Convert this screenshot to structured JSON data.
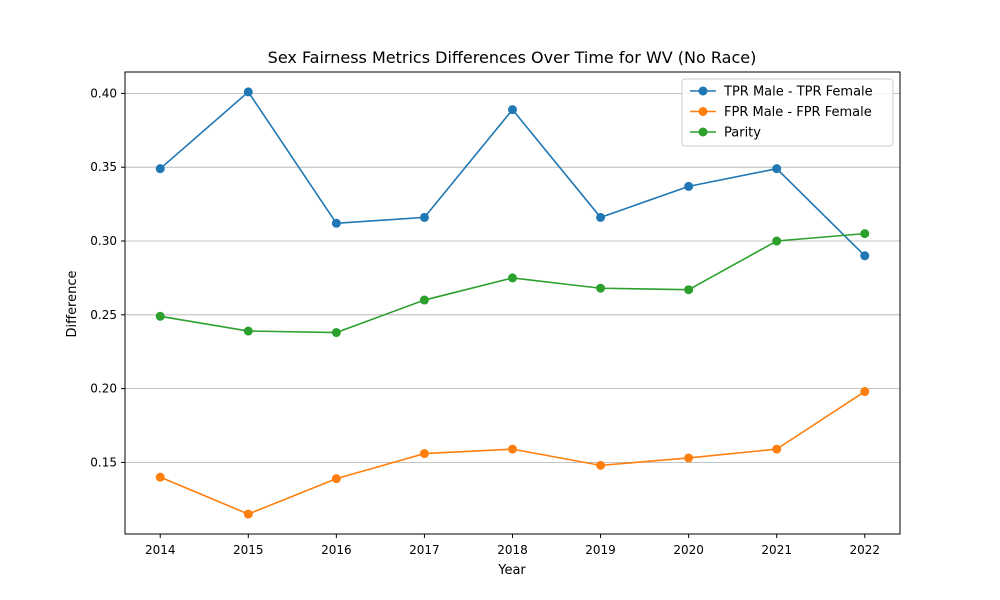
{
  "chart_data": {
    "type": "line",
    "title": "Sex Fairness Metrics Differences Over Time for WV (No Race)",
    "xlabel": "Year",
    "ylabel": "Difference",
    "x": [
      2014,
      2015,
      2016,
      2017,
      2018,
      2019,
      2020,
      2021,
      2022
    ],
    "x_ticks": [
      "2014",
      "2015",
      "2016",
      "2017",
      "2018",
      "2019",
      "2020",
      "2021",
      "2022"
    ],
    "y_ticks": [
      "0.15",
      "0.20",
      "0.25",
      "0.30",
      "0.35",
      "0.40"
    ],
    "y_tick_values": [
      0.15,
      0.2,
      0.25,
      0.3,
      0.35,
      0.4
    ],
    "ylim": [
      0.1015,
      0.4145
    ],
    "grid": "y-major",
    "legend_position": "top-right",
    "series": [
      {
        "name": "TPR Male - TPR Female",
        "color": "#1f77b4",
        "values": [
          0.349,
          0.401,
          0.312,
          0.316,
          0.389,
          0.316,
          0.337,
          0.349,
          0.29
        ]
      },
      {
        "name": "FPR Male - FPR Female",
        "color": "#ff7f0e",
        "values": [
          0.14,
          0.115,
          0.139,
          0.156,
          0.159,
          0.148,
          0.153,
          0.159,
          0.198
        ]
      },
      {
        "name": "Parity",
        "color": "#2ca02c",
        "values": [
          0.249,
          0.239,
          0.238,
          0.26,
          0.275,
          0.268,
          0.267,
          0.3,
          0.305
        ]
      }
    ]
  }
}
